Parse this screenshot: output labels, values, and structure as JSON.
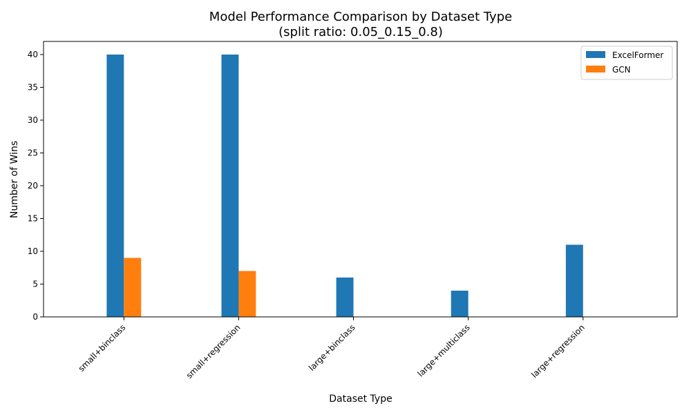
{
  "chart_data": {
    "type": "bar",
    "title": "Model Performance Comparison by Dataset Type",
    "subtitle": "(split ratio: 0.05_0.15_0.8)",
    "xlabel": "Dataset Type",
    "ylabel": "Number of Wins",
    "categories": [
      "small+binclass",
      "small+regression",
      "large+binclass",
      "large+multiclass",
      "large+regression"
    ],
    "series": [
      {
        "name": "ExcelFormer",
        "color": "#1f77b4",
        "values": [
          40,
          40,
          6,
          4,
          11
        ]
      },
      {
        "name": "GCN",
        "color": "#ff7f0e",
        "values": [
          9,
          7,
          0,
          0,
          0
        ]
      }
    ],
    "ylim": [
      0,
      42
    ],
    "yticks": [
      0,
      5,
      10,
      15,
      20,
      25,
      30,
      35,
      40
    ],
    "grid": false,
    "legend": "top-right"
  }
}
